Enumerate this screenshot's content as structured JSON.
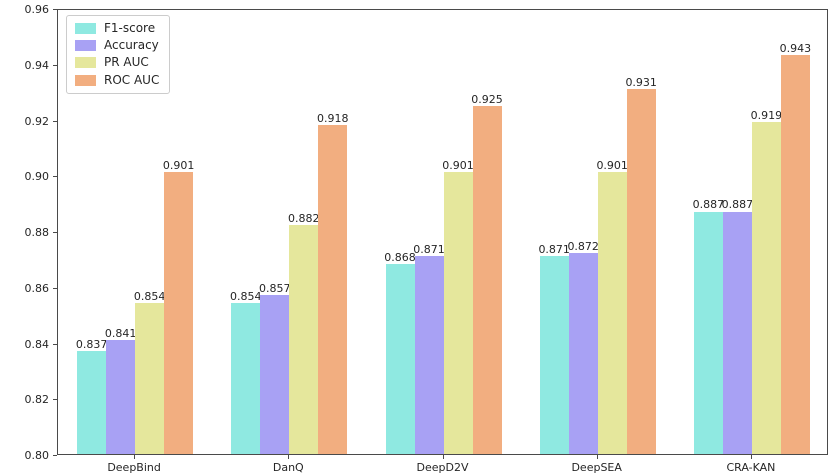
{
  "chart_data": {
    "type": "bar",
    "title": "",
    "xlabel": "",
    "ylabel": "",
    "categories": [
      "DeepBind",
      "DanQ",
      "DeepD2V",
      "DeepSEA",
      "CRA-KAN"
    ],
    "series": [
      {
        "name": "F1-score",
        "color": "#8fe9e1",
        "values": [
          0.837,
          0.854,
          0.868,
          0.871,
          0.887
        ]
      },
      {
        "name": "Accuracy",
        "color": "#a8a1f4",
        "values": [
          0.841,
          0.857,
          0.871,
          0.872,
          0.887
        ]
      },
      {
        "name": "PR AUC",
        "color": "#e5e79c",
        "values": [
          0.854,
          0.882,
          0.901,
          0.901,
          0.919
        ]
      },
      {
        "name": "ROC AUC",
        "color": "#f2ae80",
        "values": [
          0.901,
          0.918,
          0.925,
          0.931,
          0.943
        ]
      }
    ],
    "ylim": [
      0.8,
      0.96
    ],
    "ytick_labels": [
      "0.80",
      "0.82",
      "0.84",
      "0.86",
      "0.88",
      "0.90",
      "0.92",
      "0.94",
      "0.96"
    ],
    "bar_label_decimals": 3,
    "grid": false,
    "legend_position": "upper left"
  }
}
